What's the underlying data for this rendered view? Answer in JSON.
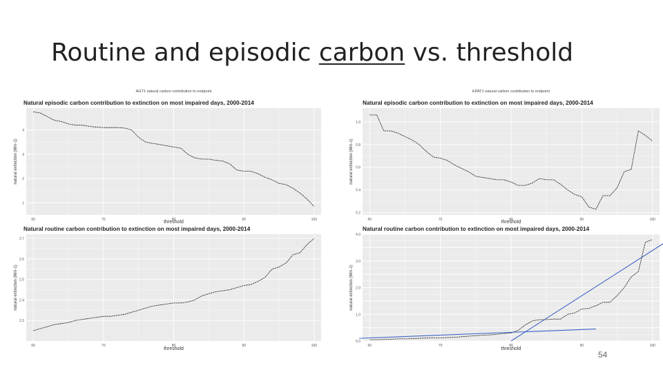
{
  "slide": {
    "title_part1": "Routine and episodic ",
    "title_underlined": "carbon",
    "title_part2": " vs. threshold",
    "page_number": "54"
  },
  "colors": {
    "panel_bg": "#ebebeb",
    "grid": "#ffffff",
    "data_line": "#222222",
    "overlay_line": "#3a63c4"
  },
  "chart_data": [
    {
      "type": "line",
      "header": "AGT1 natural carbon contribution to endpoint",
      "title": "Natural episodic carbon contribution to extinction on most impaired days, 2000-2014",
      "xlabel": "threshold",
      "ylabel": "natural extinction (Mm-1)",
      "xlim": [
        59,
        101
      ],
      "ylim": [
        0.5,
        4.9
      ],
      "xticks": [
        60,
        70,
        80,
        90,
        100
      ],
      "yticks": [
        1,
        2,
        3,
        4
      ],
      "grid": true,
      "x": [
        60,
        61,
        62,
        63,
        64,
        65,
        66,
        67,
        68,
        69,
        70,
        71,
        72,
        73,
        74,
        75,
        76,
        77,
        78,
        79,
        80,
        81,
        82,
        83,
        84,
        85,
        86,
        87,
        88,
        89,
        90,
        91,
        92,
        93,
        94,
        95,
        96,
        97,
        98,
        99,
        100
      ],
      "y": [
        4.75,
        4.7,
        4.55,
        4.4,
        4.35,
        4.25,
        4.2,
        4.2,
        4.15,
        4.12,
        4.1,
        4.1,
        4.1,
        4.08,
        4.0,
        3.7,
        3.5,
        3.45,
        3.4,
        3.35,
        3.3,
        3.25,
        3.0,
        2.85,
        2.8,
        2.8,
        2.75,
        2.72,
        2.6,
        2.35,
        2.3,
        2.3,
        2.2,
        2.05,
        1.95,
        1.8,
        1.75,
        1.6,
        1.4,
        1.15,
        0.85
      ]
    },
    {
      "type": "line",
      "header": "EPAT1 natural carbon contribution to endpoint",
      "title": "Natural episodic carbon contribution to extinction on most impaired days, 2000-2014",
      "xlabel": "threshold",
      "ylabel": "natural extinction (Mm-1)",
      "xlim": [
        59,
        101
      ],
      "ylim": [
        0.18,
        1.12
      ],
      "xticks": [
        60,
        70,
        80,
        90,
        100
      ],
      "yticks": [
        0.2,
        0.4,
        0.6,
        0.8,
        1.0
      ],
      "ytick_labels": [
        "0.2",
        "0.4",
        "0.6",
        "0.8",
        "1.0"
      ],
      "grid": true,
      "x": [
        60,
        61,
        62,
        63,
        64,
        65,
        66,
        67,
        68,
        69,
        70,
        71,
        72,
        73,
        74,
        75,
        76,
        77,
        78,
        79,
        80,
        81,
        82,
        83,
        84,
        85,
        86,
        87,
        88,
        89,
        90,
        91,
        92,
        93,
        94,
        95,
        96,
        97,
        98,
        99,
        100
      ],
      "y": [
        1.06,
        1.06,
        0.92,
        0.92,
        0.9,
        0.87,
        0.84,
        0.8,
        0.74,
        0.69,
        0.68,
        0.66,
        0.62,
        0.59,
        0.56,
        0.52,
        0.51,
        0.5,
        0.49,
        0.49,
        0.47,
        0.44,
        0.44,
        0.46,
        0.5,
        0.49,
        0.49,
        0.45,
        0.4,
        0.36,
        0.34,
        0.25,
        0.23,
        0.35,
        0.35,
        0.42,
        0.56,
        0.58,
        0.92,
        0.88,
        0.83
      ]
    },
    {
      "type": "line",
      "title": "Natural routine carbon contribution to extinction on most impaired days, 2000-2014",
      "xlabel": "threshold",
      "ylabel": "natural extinction (Mm-1)",
      "xlim": [
        59,
        101
      ],
      "ylim": [
        2.2,
        2.72
      ],
      "xticks": [
        60,
        70,
        80,
        90,
        100
      ],
      "yticks": [
        2.3,
        2.4,
        2.5,
        2.6,
        2.7
      ],
      "ytick_labels": [
        "2.3",
        "2.4",
        "2.5",
        "2.6",
        "2.7"
      ],
      "grid": true,
      "x": [
        60,
        61,
        62,
        63,
        64,
        65,
        66,
        67,
        68,
        69,
        70,
        71,
        72,
        73,
        74,
        75,
        76,
        77,
        78,
        79,
        80,
        81,
        82,
        83,
        84,
        85,
        86,
        87,
        88,
        89,
        90,
        91,
        92,
        93,
        94,
        95,
        96,
        97,
        98,
        99,
        100
      ],
      "y": [
        2.25,
        2.26,
        2.27,
        2.28,
        2.285,
        2.29,
        2.3,
        2.305,
        2.31,
        2.315,
        2.32,
        2.32,
        2.325,
        2.33,
        2.34,
        2.35,
        2.36,
        2.37,
        2.375,
        2.38,
        2.385,
        2.385,
        2.39,
        2.4,
        2.42,
        2.43,
        2.44,
        2.445,
        2.45,
        2.46,
        2.47,
        2.475,
        2.49,
        2.51,
        2.55,
        2.56,
        2.58,
        2.62,
        2.63,
        2.67,
        2.7
      ]
    },
    {
      "type": "line",
      "title": "Natural routine carbon contribution to extinction on most impaired days, 2000-2014",
      "xlabel": "threshold",
      "ylabel": "natural extinction (Mm-1)",
      "xlim": [
        59,
        101
      ],
      "ylim": [
        0.0,
        4.0
      ],
      "xticks": [
        60,
        70,
        80,
        90,
        100
      ],
      "yticks": [
        0.0,
        0.5,
        1.0,
        1.5,
        2.0,
        2.5,
        3.0,
        3.5,
        4.0
      ],
      "ytick_labels": [
        "0.0",
        "",
        "1.0",
        "",
        "2.0",
        "",
        "3.0",
        "",
        "4.0"
      ],
      "grid": true,
      "x": [
        60,
        61,
        62,
        63,
        64,
        65,
        66,
        67,
        68,
        69,
        70,
        71,
        72,
        73,
        74,
        75,
        76,
        77,
        78,
        79,
        80,
        81,
        82,
        83,
        84,
        85,
        86,
        87,
        88,
        89,
        90,
        91,
        92,
        93,
        94,
        95,
        96,
        97,
        98,
        99,
        100
      ],
      "y": [
        0.05,
        0.05,
        0.06,
        0.07,
        0.08,
        0.08,
        0.09,
        0.1,
        0.11,
        0.12,
        0.12,
        0.13,
        0.14,
        0.16,
        0.18,
        0.2,
        0.22,
        0.23,
        0.25,
        0.28,
        0.3,
        0.4,
        0.6,
        0.75,
        0.8,
        0.8,
        0.82,
        0.82,
        1.0,
        1.05,
        1.2,
        1.22,
        1.32,
        1.45,
        1.45,
        1.7,
        2.0,
        2.4,
        2.6,
        3.7,
        3.8
      ],
      "overlay_lines": [
        {
          "x": [
            58.5,
            92
          ],
          "y": [
            0.1,
            0.45
          ]
        },
        {
          "x": [
            80,
            103
          ],
          "y": [
            0.0,
            3.9
          ]
        }
      ]
    }
  ]
}
